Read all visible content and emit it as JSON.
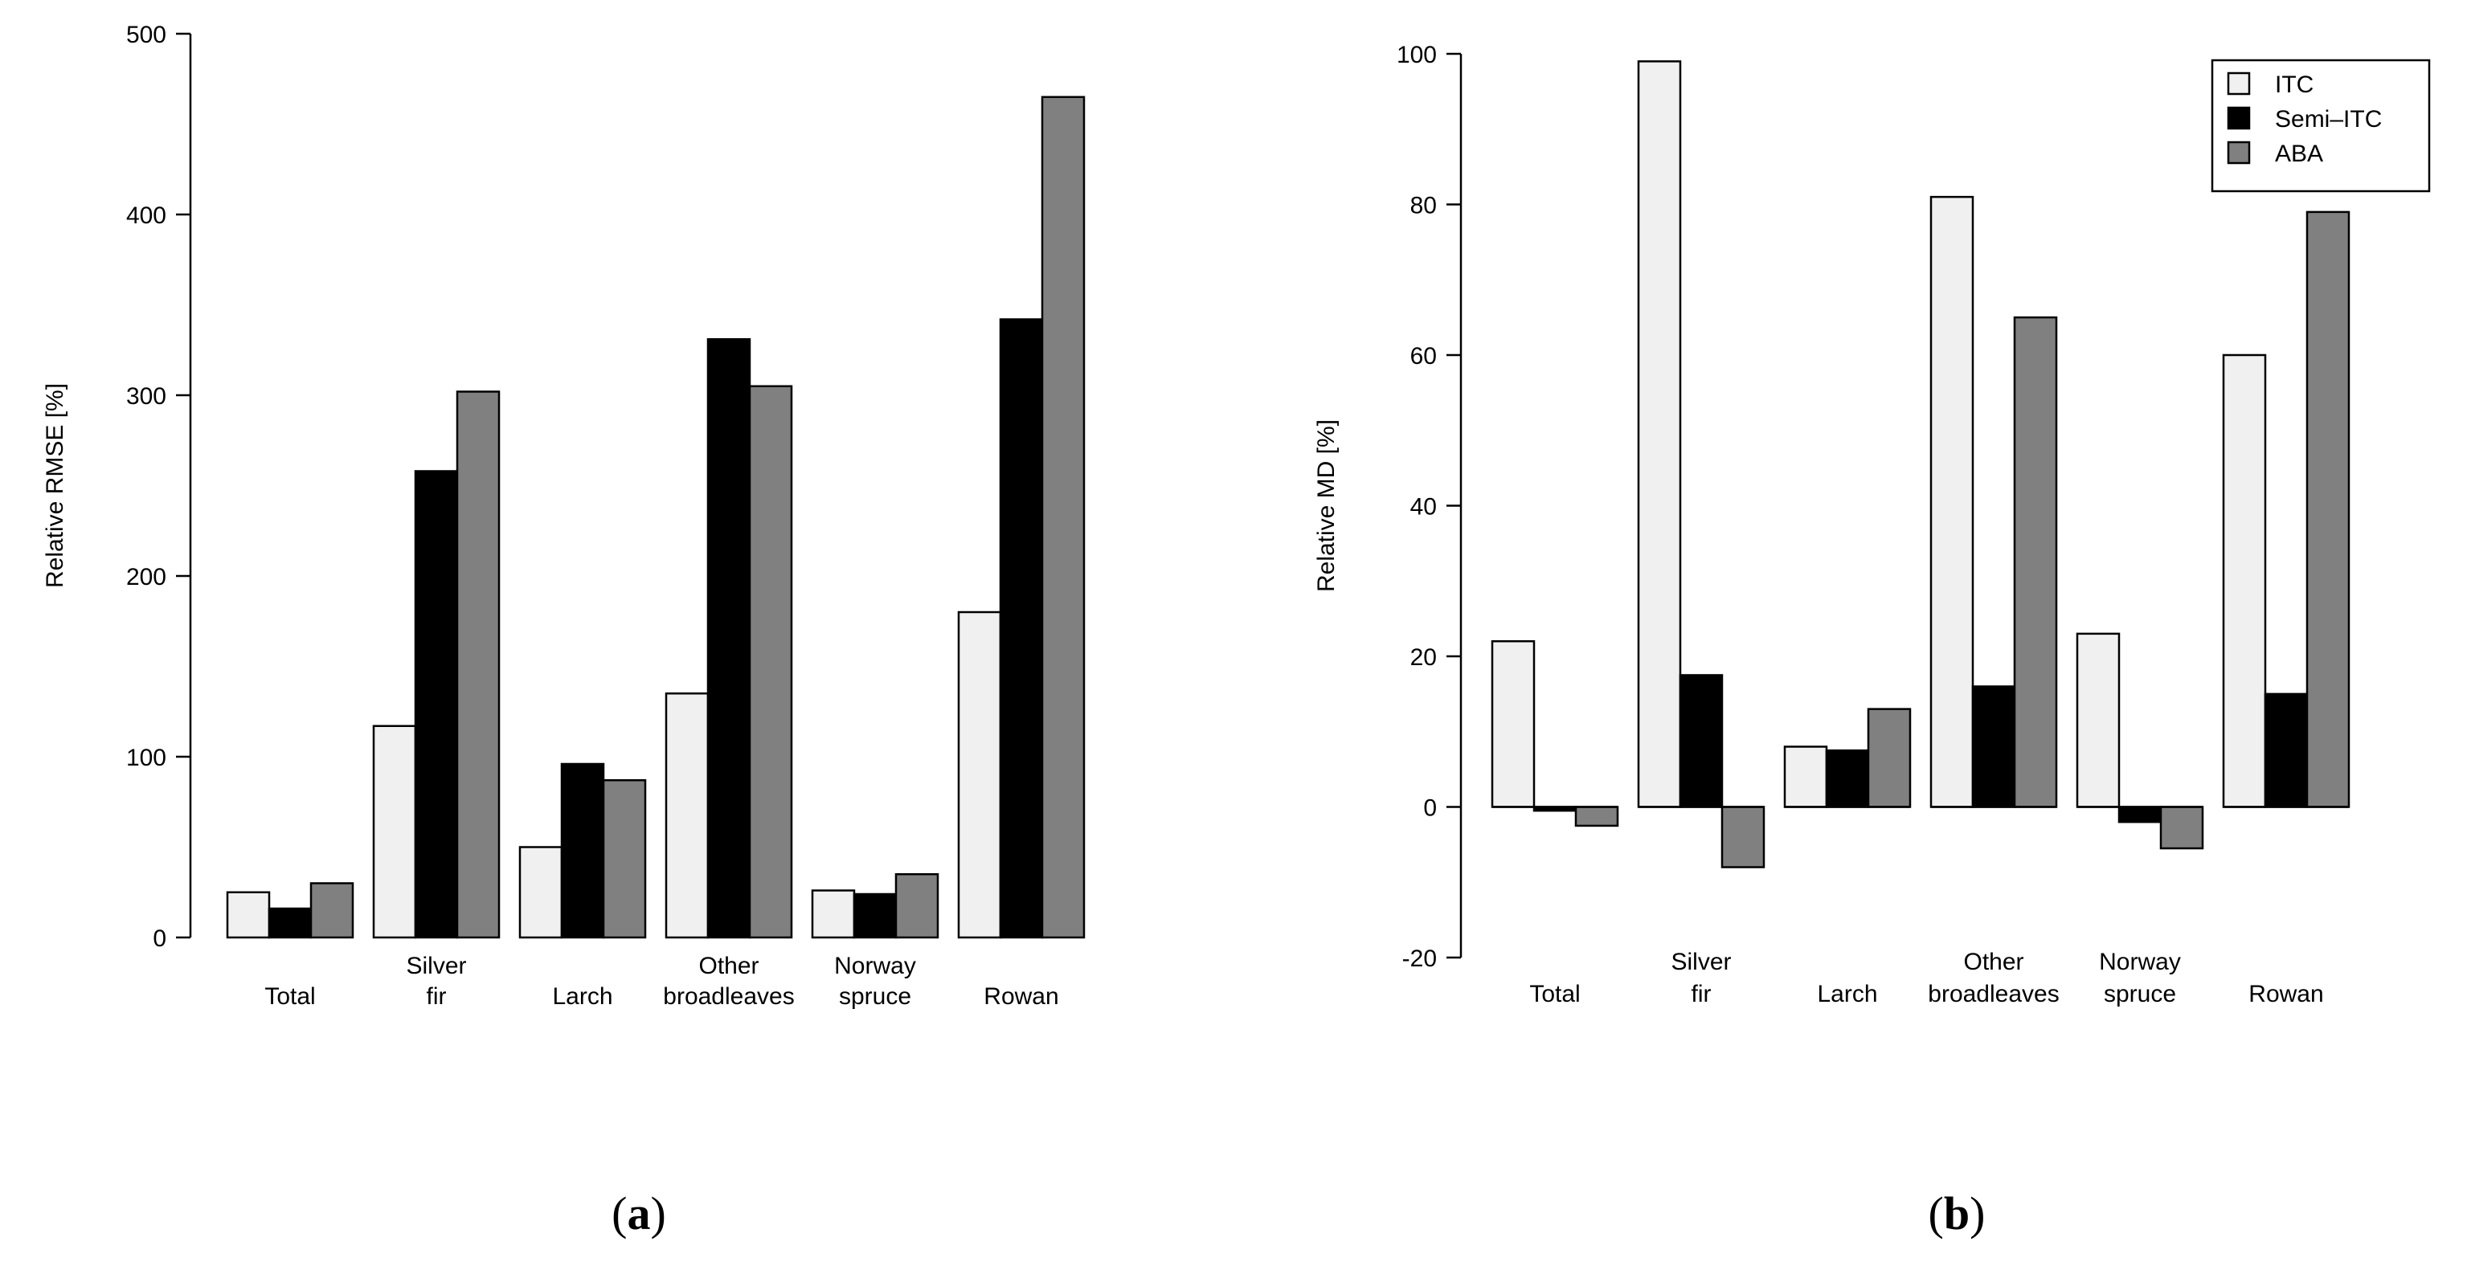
{
  "colors": {
    "ITC": "#f0f0f0",
    "Semi-ITC": "#000000",
    "ABA": "#808080"
  },
  "chart_data": [
    {
      "type": "bar",
      "panel": "a",
      "categories": [
        [
          "Total"
        ],
        [
          "Silver",
          "fir"
        ],
        [
          "Larch"
        ],
        [
          "Other",
          "broadleaves"
        ],
        [
          "Norway",
          "spruce"
        ],
        [
          "Rowan"
        ]
      ],
      "series": [
        {
          "name": "ITC",
          "values": [
            25,
            117,
            50,
            135,
            26,
            180
          ]
        },
        {
          "name": "Semi-ITC",
          "values": [
            16,
            258,
            96,
            331,
            24,
            342
          ]
        },
        {
          "name": "ABA",
          "values": [
            30,
            302,
            87,
            305,
            35,
            465
          ]
        }
      ],
      "ylabel": "Relative RMSE [%]",
      "ylim": [
        0,
        500
      ],
      "yticks": [
        0,
        100,
        200,
        300,
        400,
        500
      ],
      "legend": "none"
    },
    {
      "type": "bar",
      "panel": "b",
      "categories": [
        [
          "Total"
        ],
        [
          "Silver",
          "fir"
        ],
        [
          "Larch"
        ],
        [
          "Other",
          "broadleaves"
        ],
        [
          "Norway",
          "spruce"
        ],
        [
          "Rowan"
        ]
      ],
      "series": [
        {
          "name": "ITC",
          "values": [
            22,
            99,
            8,
            81,
            23,
            60
          ]
        },
        {
          "name": "Semi-ITC",
          "values": [
            -0.5,
            17.5,
            7.5,
            16,
            -2,
            15
          ]
        },
        {
          "name": "ABA",
          "values": [
            -2.5,
            -8,
            13,
            65,
            -5.5,
            79
          ]
        }
      ],
      "ylabel": "Relative MD [%]",
      "ylim": [
        -20,
        100
      ],
      "yticks": [
        -20,
        0,
        20,
        40,
        60,
        80,
        100
      ],
      "legend": "top-right",
      "legend_labels": [
        "ITC",
        "Semi–ITC",
        "ABA"
      ]
    }
  ],
  "panel_labels": [
    {
      "open": "(",
      "letter": "a",
      "close": ")"
    },
    {
      "open": "(",
      "letter": "b",
      "close": ")"
    }
  ]
}
